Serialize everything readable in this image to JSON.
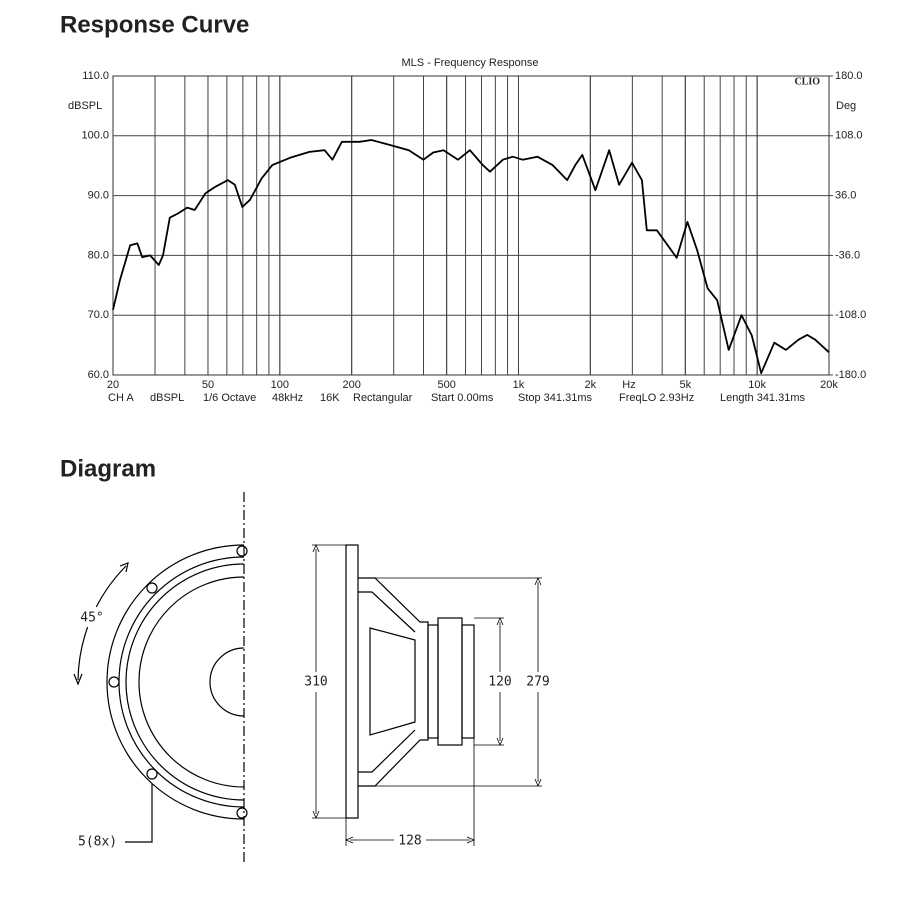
{
  "headings": [
    "Response Curve",
    "Diagram"
  ],
  "chart_data": {
    "type": "line",
    "title": "MLS - Frequency Response",
    "brand": "CLIO",
    "xlabel": "Hz",
    "ylabel": "dBSPL",
    "y2label": "Deg",
    "footer": [
      "CH A",
      "dBSPL",
      "1/6 Octave",
      "48kHz",
      "16K",
      "Rectangular",
      "Start 0.00ms",
      "Stop 341.31ms",
      "FreqLO 2.93Hz",
      "Length 341.31ms"
    ],
    "xscale": "log",
    "xlim": [
      20,
      20000
    ],
    "xticks": [
      20,
      50,
      100,
      200,
      500,
      {
        "value": 1000,
        "label": "1k"
      },
      {
        "value": 2000,
        "label": "2k"
      },
      {
        "value": 5000,
        "label": "5k"
      },
      {
        "value": 10000,
        "label": "10k"
      },
      {
        "value": 20000,
        "label": "20k"
      }
    ],
    "ylim": [
      60,
      110
    ],
    "yticks": [
      {
        "value": 60,
        "label": "60.0"
      },
      {
        "value": 70,
        "label": "70.0"
      },
      {
        "value": 80,
        "label": "80.0"
      },
      {
        "value": 90,
        "label": "90.0"
      },
      {
        "value": 100,
        "label": "100.0"
      },
      {
        "value": 110,
        "label": "110.0"
      }
    ],
    "y2lim": [
      -180,
      180
    ],
    "y2ticks": [
      {
        "value": -180,
        "label": "-180.0"
      },
      {
        "value": -108,
        "label": "-108.0"
      },
      {
        "value": -36,
        "label": "-36.0"
      },
      {
        "value": 36,
        "label": "36.0"
      },
      {
        "value": 108,
        "label": "108.0"
      },
      {
        "value": 180,
        "label": "180.0"
      }
    ],
    "grid": true,
    "minor_grid": true,
    "color": "#000000",
    "x": [
      20,
      21.4,
      23.6,
      25.3,
      26.5,
      28.6,
      31.1,
      32.4,
      34.6,
      37.4,
      40.9,
      44,
      48.8,
      53.3,
      60.6,
      64.8,
      69.6,
      75,
      84,
      93,
      110,
      133,
      154,
      166,
      182,
      216,
      242,
      287,
      347,
      400,
      439,
      485,
      558,
      626,
      709,
      760,
      860,
      946,
      1040,
      1200,
      1390,
      1600,
      1730,
      1850,
      2100,
      2400,
      2640,
      2990,
      3290,
      3450,
      3800,
      4600,
      5100,
      5600,
      6200,
      6800,
      7600,
      8600,
      9500,
      10400,
      11800,
      13200,
      14900,
      16200,
      17500,
      20000
    ],
    "values": [
      70.9,
      75.9,
      81.7,
      82,
      79.7,
      80,
      78.4,
      80,
      86.3,
      87,
      88,
      87.6,
      90.4,
      91.4,
      92.6,
      91.8,
      88.1,
      89.3,
      92.9,
      95.1,
      96.3,
      97.3,
      97.6,
      96,
      99,
      99,
      99.3,
      98.5,
      97.6,
      96,
      97.2,
      97.6,
      96,
      97.6,
      95.1,
      94,
      96,
      96.5,
      96,
      96.5,
      95.1,
      92.6,
      95.1,
      96.8,
      90.9,
      97.6,
      91.8,
      95.5,
      92.6,
      84.2,
      84.2,
      79.6,
      85.6,
      80.9,
      74.5,
      72.5,
      64.2,
      70,
      66.6,
      60.3,
      65.4,
      64.2,
      65.9,
      66.7,
      65.9,
      63.8
    ]
  },
  "diagram": {
    "labels": [
      "45°",
      "5(8x)",
      "310",
      "120",
      "279",
      "128"
    ]
  }
}
